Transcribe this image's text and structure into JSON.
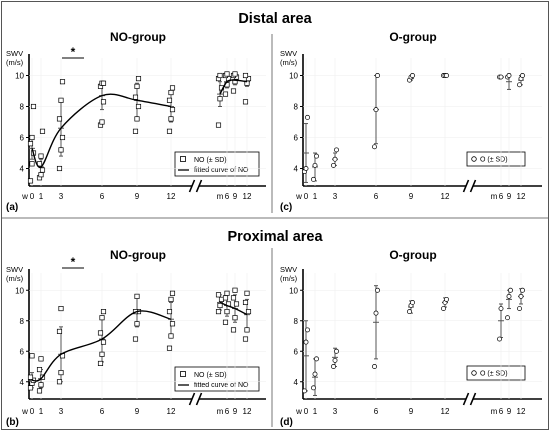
{
  "sections": [
    {
      "title": "Distal area",
      "panels": [
        {
          "letter": "(a)",
          "group_title": "NO-group",
          "ylabel_top": "SWV",
          "ylabel_bottom": "(m/s)",
          "legend": [
            "NO (± SD)",
            "fitted curve of NO"
          ],
          "significance": "*"
        },
        {
          "letter": "(c)",
          "group_title": "O-group",
          "ylabel_top": "SWV",
          "ylabel_bottom": "(m/s)",
          "legend": [
            "O (± SD)"
          ]
        }
      ]
    },
    {
      "title": "Proximal area",
      "panels": [
        {
          "letter": "(b)",
          "group_title": "NO-group",
          "ylabel_top": "SWV",
          "ylabel_bottom": "(m/s)",
          "legend": [
            "NO (± SD)",
            "fitted curve of NO"
          ],
          "significance": "*"
        },
        {
          "letter": "(d)",
          "group_title": "O-group",
          "ylabel_top": "SWV",
          "ylabel_bottom": "(m/s)",
          "legend": [
            "O (± SD)"
          ]
        }
      ]
    }
  ],
  "chart_data": [
    {
      "type": "scatter",
      "panel": "(a)",
      "area": "Distal area",
      "group": "NO-group",
      "x_ticks": [
        "w",
        "0",
        "1",
        "3",
        "6",
        "9",
        "12",
        "m",
        "6",
        "9",
        "12"
      ],
      "y_ticks": [
        4,
        6,
        8,
        10
      ],
      "ylim": [
        3,
        11
      ],
      "marker": "square",
      "x_break": "between 12 and m",
      "series": [
        {
          "name": "NO (± SD)",
          "points": [
            {
              "x": "0",
              "mean": 5.3,
              "sd": 0.7,
              "values": [
                3.2,
                4.3,
                5.0,
                5.6,
                6.0,
                8.0
              ]
            },
            {
              "x": "1",
              "mean": 4.1,
              "sd": 0.5,
              "values": [
                3.4,
                3.6,
                3.9,
                4.3,
                4.8,
                6.4
              ]
            },
            {
              "x": "3",
              "mean": 6.6,
              "sd": 1.8,
              "values": [
                4.0,
                5.2,
                6.0,
                7.2,
                8.4,
                9.6
              ]
            },
            {
              "x": "6",
              "mean": 8.7,
              "sd": 0.9,
              "values": [
                6.8,
                7.0,
                8.3,
                9.3,
                9.5,
                9.5
              ]
            },
            {
              "x": "9",
              "mean": 8.4,
              "sd": 1.1,
              "values": [
                6.4,
                7.2,
                8.0,
                8.6,
                9.3,
                9.8
              ]
            },
            {
              "x": "12",
              "mean": 8.0,
              "sd": 1.0,
              "values": [
                6.4,
                7.2,
                7.8,
                8.4,
                8.9,
                9.2
              ]
            },
            {
              "x": "m",
              "mean": 8.8,
              "sd": 0.8,
              "values": [
                6.8,
                8.5,
                9.2,
                9.8,
                10.0
              ]
            },
            {
              "x": "6",
              "segment": "m",
              "mean": 9.6,
              "sd": 0.4,
              "values": [
                8.8,
                9.4,
                9.8,
                10.0,
                10.1
              ]
            },
            {
              "x": "9",
              "segment": "m",
              "mean": 9.7,
              "sd": 0.3,
              "values": [
                9.0,
                9.6,
                9.9,
                10.0,
                10.1
              ]
            },
            {
              "x": "12",
              "segment": "m",
              "mean": 9.6,
              "sd": 0.3,
              "values": [
                8.3,
                9.5,
                9.8,
                10.0
              ]
            }
          ]
        },
        {
          "name": "fitted curve of NO",
          "kind": "line"
        }
      ]
    },
    {
      "type": "scatter",
      "panel": "(c)",
      "area": "Distal area",
      "group": "O-group",
      "x_ticks": [
        "w",
        "0",
        "1",
        "3",
        "6",
        "9",
        "12",
        "m",
        "6",
        "9",
        "12"
      ],
      "y_ticks": [
        4,
        6,
        8,
        10
      ],
      "ylim": [
        3,
        11
      ],
      "marker": "circle",
      "x_break": "between 12 and m",
      "series": [
        {
          "name": "O (± SD)",
          "points": [
            {
              "x": "0",
              "mean": 5.0,
              "sd": 1.9,
              "values": [
                3.8,
                4.0,
                7.3
              ]
            },
            {
              "x": "1",
              "mean": 4.1,
              "sd": 0.9,
              "values": [
                3.3,
                4.2,
                4.8
              ]
            },
            {
              "x": "3",
              "mean": 4.6,
              "sd": 0.4,
              "values": [
                4.2,
                4.6,
                5.2
              ]
            },
            {
              "x": "6",
              "mean": 7.8,
              "sd": 2.2,
              "values": [
                5.4,
                7.8,
                10.0
              ]
            },
            {
              "x": "9",
              "mean": 9.8,
              "sd": 0.1,
              "values": [
                9.7,
                9.9,
                10.0
              ]
            },
            {
              "x": "12",
              "mean": 10.0,
              "sd": 0.0,
              "values": [
                10.0,
                10.0,
                10.0
              ]
            },
            {
              "x": "6",
              "segment": "m",
              "mean": 9.9,
              "sd": 0.0,
              "values": [
                9.9,
                9.9
              ]
            },
            {
              "x": "9",
              "segment": "m",
              "mean": 9.6,
              "sd": 0.5,
              "values": [
                9.9,
                10.0
              ]
            },
            {
              "x": "12",
              "segment": "m",
              "mean": 9.7,
              "sd": 0.3,
              "values": [
                9.4,
                9.8,
                10.0
              ]
            }
          ]
        }
      ]
    },
    {
      "type": "scatter",
      "panel": "(b)",
      "area": "Proximal area",
      "group": "NO-group",
      "x_ticks": [
        "w",
        "0",
        "1",
        "3",
        "6",
        "9",
        "12",
        "m",
        "6",
        "9",
        "12"
      ],
      "y_ticks": [
        4,
        6,
        8,
        10
      ],
      "ylim": [
        3,
        11
      ],
      "marker": "square",
      "x_break": "between 12 and m",
      "series": [
        {
          "name": "NO (± SD)",
          "points": [
            {
              "x": "0",
              "mean": 4.1,
              "sd": 0.5,
              "values": [
                3.6,
                3.9,
                4.1,
                4.3,
                5.7
              ]
            },
            {
              "x": "1",
              "mean": 4.2,
              "sd": 0.6,
              "values": [
                3.4,
                3.8,
                4.3,
                4.8,
                5.5
              ]
            },
            {
              "x": "3",
              "mean": 5.8,
              "sd": 1.8,
              "values": [
                4.0,
                4.6,
                5.7,
                7.3,
                8.8
              ]
            },
            {
              "x": "6",
              "mean": 6.8,
              "sd": 1.5,
              "values": [
                5.2,
                5.8,
                6.6,
                7.2,
                8.2,
                8.6
              ]
            },
            {
              "x": "9",
              "mean": 8.6,
              "sd": 1.0,
              "values": [
                6.8,
                7.8,
                8.6,
                8.6,
                9.6
              ]
            },
            {
              "x": "12",
              "mean": 8.1,
              "sd": 1.1,
              "values": [
                6.2,
                7.0,
                7.8,
                8.6,
                9.4,
                9.8
              ]
            },
            {
              "x": "m",
              "mean": 9.2,
              "sd": 0.5,
              "values": [
                8.6,
                9.0,
                9.4,
                9.7
              ]
            },
            {
              "x": "6",
              "segment": "m",
              "mean": 9.0,
              "sd": 0.7,
              "values": [
                7.9,
                8.6,
                9.1,
                9.5,
                9.8
              ]
            },
            {
              "x": "9",
              "segment": "m",
              "mean": 8.8,
              "sd": 0.9,
              "values": [
                7.4,
                8.2,
                9.1,
                9.5,
                10.0
              ]
            },
            {
              "x": "12",
              "segment": "m",
              "mean": 8.4,
              "sd": 1.0,
              "values": [
                6.8,
                7.4,
                8.6,
                9.2,
                9.8
              ]
            }
          ]
        },
        {
          "name": "fitted curve of NO",
          "kind": "line"
        }
      ]
    },
    {
      "type": "scatter",
      "panel": "(d)",
      "area": "Proximal area",
      "group": "O-group",
      "x_ticks": [
        "w",
        "0",
        "1",
        "3",
        "6",
        "9",
        "12",
        "m",
        "6",
        "9",
        "12"
      ],
      "y_ticks": [
        4,
        6,
        8,
        10
      ],
      "ylim": [
        3,
        11
      ],
      "marker": "circle",
      "x_break": "between 12 and m",
      "series": [
        {
          "name": "O (± SD)",
          "points": [
            {
              "x": "0",
              "mean": 5.7,
              "sd": 2.3,
              "values": [
                3.4,
                6.6,
                7.4
              ]
            },
            {
              "x": "1",
              "mean": 4.3,
              "sd": 1.2,
              "values": [
                3.6,
                4.5,
                5.5
              ]
            },
            {
              "x": "3",
              "mean": 5.6,
              "sd": 0.6,
              "values": [
                5.0,
                5.4,
                6.0
              ]
            },
            {
              "x": "6",
              "mean": 7.9,
              "sd": 2.4,
              "values": [
                5.0,
                8.5,
                10.0
              ]
            },
            {
              "x": "9",
              "mean": 8.9,
              "sd": 0.4,
              "values": [
                8.6,
                9.0,
                9.2
              ]
            },
            {
              "x": "12",
              "mean": 9.2,
              "sd": 0.3,
              "values": [
                8.8,
                9.2,
                9.4
              ]
            },
            {
              "x": "6",
              "segment": "m",
              "mean": 8.0,
              "sd": 1.1,
              "values": [
                6.8,
                8.8
              ]
            },
            {
              "x": "9",
              "segment": "m",
              "mean": 9.4,
              "sd": 0.6,
              "values": [
                8.2,
                9.6,
                10.0
              ]
            },
            {
              "x": "12",
              "segment": "m",
              "mean": 9.6,
              "sd": 0.5,
              "values": [
                8.8,
                9.6,
                10.0
              ]
            }
          ]
        }
      ]
    }
  ]
}
